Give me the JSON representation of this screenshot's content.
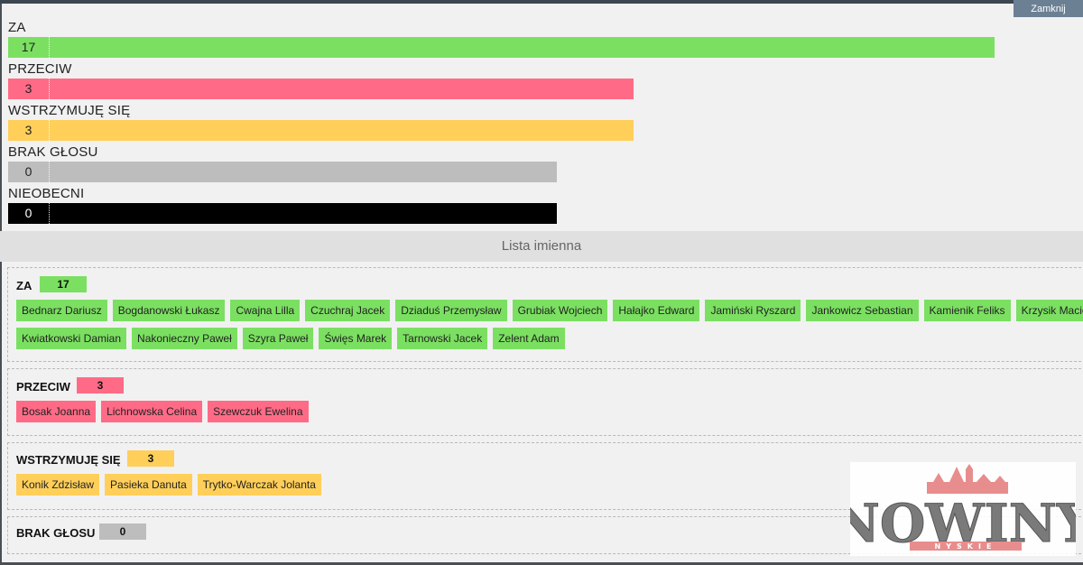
{
  "window": {
    "close_label": "Zamknij"
  },
  "results": [
    {
      "label": "ZA",
      "count": "17",
      "color": "#7be061",
      "fraction": 1.0
    },
    {
      "label": "PRZECIW",
      "count": "3",
      "color": "#ff6b86",
      "fraction": 0.634
    },
    {
      "label": "WSTRZYMUJĘ SIĘ",
      "count": "3",
      "color": "#ffcf5a",
      "fraction": 0.634
    },
    {
      "label": "BRAK GŁOSU",
      "count": "0",
      "color": "#bdbdbd",
      "fraction": 0.556
    },
    {
      "label": "NIEOBECNI",
      "count": "0",
      "color": "#000000",
      "fraction": 0.556
    }
  ],
  "list_title": "Lista imienna",
  "groups": {
    "za": {
      "title": "ZA",
      "count": "17",
      "names_line1": [
        "Bednarz Dariusz",
        "Bogdanowski Łukasz",
        "Cwajna Lilla",
        "Czuchraj Jacek",
        "Dziaduś Przemysław",
        "Grubiak Wojciech",
        "Hałajko Edward",
        "Jamiński Ryszard",
        "Jankowicz Sebastian",
        "Kamienik Feliks",
        "Krzysik Maciej"
      ],
      "names_line2": [
        "Kwiatkowski Damian",
        "Nakonieczny Paweł",
        "Szyra Paweł",
        "Święs Marek",
        "Tarnowski Jacek",
        "Zelent Adam"
      ]
    },
    "przeciw": {
      "title": "PRZECIW",
      "count": "3",
      "names": [
        "Bosak Joanna",
        "Lichnowska Celina",
        "Szewczuk Ewelina"
      ]
    },
    "wstrzymuje": {
      "title": "WSTRZYMUJĘ SIĘ",
      "count": "3",
      "names": [
        "Konik Zdzisław",
        "Pasieka Danuta",
        "Trytko-Warczak Jolanta"
      ]
    },
    "brak": {
      "title": "BRAK GŁOSU",
      "count": "0"
    }
  },
  "logo": {
    "name": "NOWINY",
    "sub": "NYSKIE",
    "icon": "town-skyline-icon"
  }
}
